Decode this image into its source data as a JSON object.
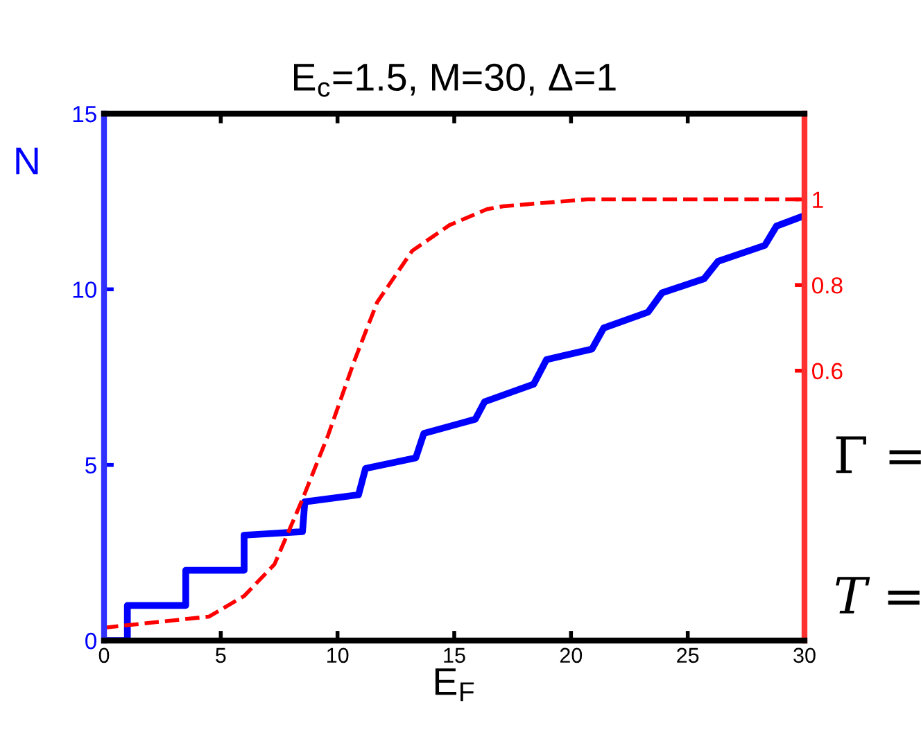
{
  "chart_data": {
    "type": "line",
    "title": "E$_{c}$=1.5, M=30, Δ=1",
    "xlabel": "E$_{F}$",
    "ylabel": "N",
    "series": [
      {
        "color": "#0000ff",
        "line_style": "solid",
        "x": [
          0,
          1,
          1,
          3.5,
          3.5,
          6,
          6,
          8.5,
          8.6,
          10.9,
          11.2,
          13.35,
          13.7,
          15.35,
          15.9,
          16.3,
          18.4,
          18.95,
          20.9,
          21.4,
          23.3,
          23.9,
          25.7,
          26.3,
          28.3,
          28.8,
          30
        ],
        "values": [
          0,
          0,
          1,
          1,
          2,
          2,
          3,
          3.1,
          3.95,
          4.15,
          4.9,
          5.2,
          5.9,
          6.2,
          6.3,
          6.8,
          7.3,
          8.0,
          8.3,
          8.9,
          9.35,
          9.9,
          10.3,
          10.8,
          11.25,
          11.8,
          12.1
        ]
      },
      {
        "color": "#ff0000",
        "line_style": "dashed",
        "axis": "y2",
        "x": [
          0,
          4.5,
          6.0,
          7.3,
          8.5,
          9.6,
          10.7,
          11.7,
          13.2,
          14.8,
          16.4,
          17.1,
          20.7,
          30
        ],
        "values": [
          0.0,
          0.026,
          0.074,
          0.148,
          0.3,
          0.45,
          0.62,
          0.76,
          0.88,
          0.94,
          0.977,
          0.984,
          1,
          1
        ]
      }
    ],
    "xlim": [
      0,
      30
    ],
    "xticks": [
      0,
      5,
      10,
      15,
      20,
      25,
      30
    ],
    "ylim": [
      0,
      15
    ],
    "yticks": [
      0,
      5,
      10,
      15
    ],
    "y2lim": [
      -0.03,
      1.2
    ],
    "y2ticks": [
      0.6,
      0.8,
      1
    ],
    "annotations": [
      "Γ =",
      "T ="
    ],
    "grid": false,
    "legend": false
  }
}
